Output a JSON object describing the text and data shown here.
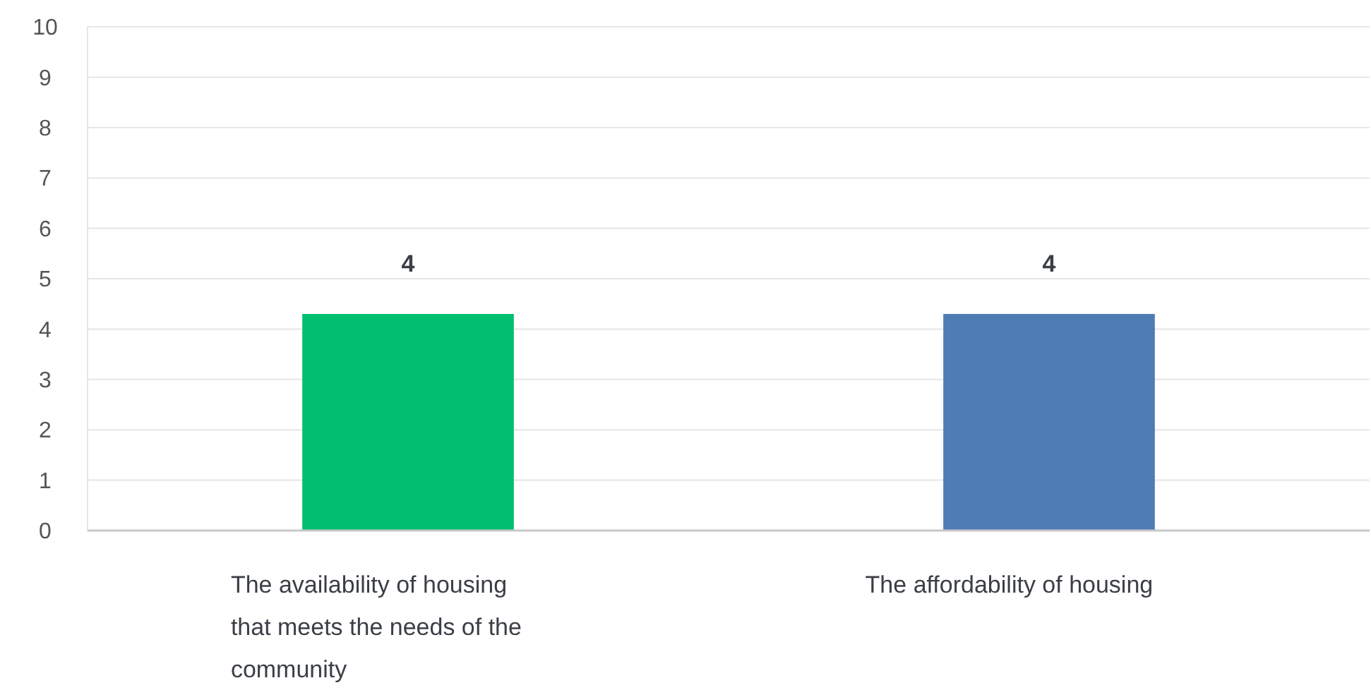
{
  "chart_data": {
    "type": "bar",
    "categories": [
      "The availability of housing that meets the needs of the community",
      "The affordability of housing"
    ],
    "values": [
      4.3,
      4.3
    ],
    "colors": [
      "#00bf6f",
      "#507cb6"
    ],
    "value_labels": [
      "4",
      "4"
    ],
    "ylim": [
      0,
      10
    ],
    "yticks": [
      0,
      1,
      2,
      3,
      4,
      5,
      6,
      7,
      8,
      9,
      10
    ],
    "grid": "y"
  }
}
